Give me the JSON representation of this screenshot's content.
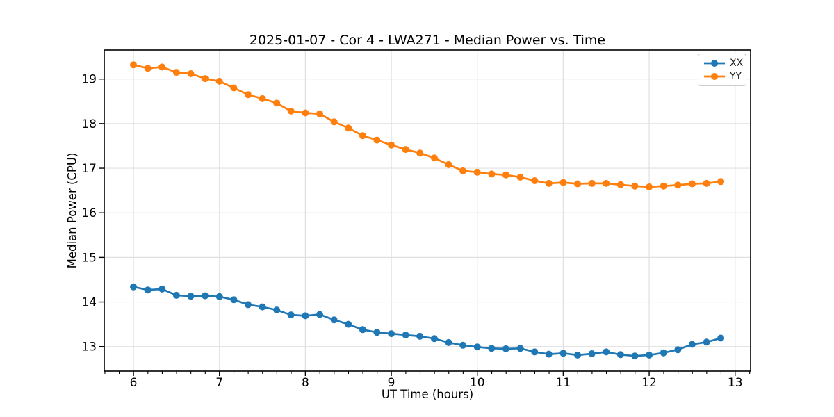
{
  "chart_data": {
    "type": "line",
    "title": "2025-01-07 - Cor 4 - LWA271 - Median Power vs. Time",
    "xlabel": "UT Time (hours)",
    "ylabel": "Median Power (CPU)",
    "xlim": [
      5.66,
      13.18
    ],
    "ylim": [
      12.45,
      19.65
    ],
    "x_ticks": [
      6,
      7,
      8,
      9,
      10,
      11,
      12,
      13
    ],
    "y_ticks": [
      13,
      14,
      15,
      16,
      17,
      18,
      19
    ],
    "x_minor_step": 0.1667,
    "grid": true,
    "grid_color": "#e0e0e0",
    "legend_position": "upper-right",
    "x": [
      6.0,
      6.167,
      6.333,
      6.5,
      6.667,
      6.833,
      7.0,
      7.167,
      7.333,
      7.5,
      7.667,
      7.833,
      8.0,
      8.167,
      8.333,
      8.5,
      8.667,
      8.833,
      9.0,
      9.167,
      9.333,
      9.5,
      9.667,
      9.833,
      10.0,
      10.167,
      10.333,
      10.5,
      10.667,
      10.833,
      11.0,
      11.167,
      11.333,
      11.5,
      11.667,
      11.833,
      12.0,
      12.167,
      12.333,
      12.5,
      12.667,
      12.833
    ],
    "series": [
      {
        "name": "XX",
        "color": "#1f77b4",
        "values": [
          14.34,
          14.27,
          14.29,
          14.15,
          14.13,
          14.14,
          14.12,
          14.05,
          13.94,
          13.89,
          13.82,
          13.71,
          13.69,
          13.72,
          13.6,
          13.5,
          13.38,
          13.32,
          13.29,
          13.26,
          13.23,
          13.18,
          13.09,
          13.03,
          12.99,
          12.96,
          12.95,
          12.96,
          12.88,
          12.83,
          12.85,
          12.81,
          12.84,
          12.88,
          12.82,
          12.79,
          12.81,
          12.86,
          12.93,
          13.05,
          13.1,
          13.19
        ]
      },
      {
        "name": "YY",
        "color": "#ff7f0e",
        "values": [
          19.32,
          19.24,
          19.27,
          19.15,
          19.12,
          19.01,
          18.95,
          18.8,
          18.65,
          18.56,
          18.46,
          18.28,
          18.24,
          18.22,
          18.04,
          17.9,
          17.73,
          17.63,
          17.52,
          17.42,
          17.34,
          17.23,
          17.08,
          16.94,
          16.91,
          16.87,
          16.85,
          16.8,
          16.72,
          16.66,
          16.68,
          16.65,
          16.66,
          16.66,
          16.63,
          16.6,
          16.58,
          16.6,
          16.62,
          16.65,
          16.66,
          16.7
        ]
      }
    ]
  }
}
